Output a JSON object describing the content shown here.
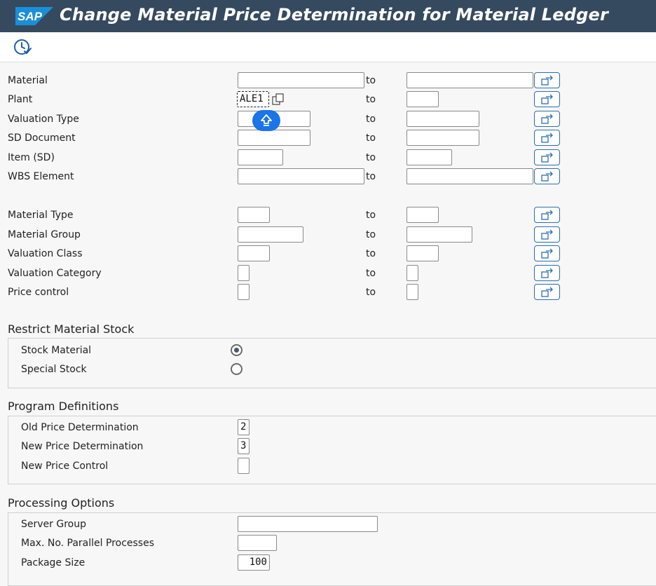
{
  "header": {
    "logo_text": "SAP",
    "title": "Change Material Price Determination for Material Ledger"
  },
  "toolbar": {
    "icon": "clock-execute-icon"
  },
  "colors": {
    "titlebar": "#354a5f",
    "multi_button_border": "#2a6fb0",
    "drag_handle": "#1b74e8"
  },
  "selection": {
    "to_label": "to",
    "rows": [
      {
        "label": "Material",
        "from": "",
        "to": ""
      },
      {
        "label": "Plant",
        "from": "ALE1",
        "to": ""
      },
      {
        "label": "Valuation Type",
        "from": "",
        "to": ""
      },
      {
        "label": "SD Document",
        "from": "",
        "to": ""
      },
      {
        "label": "Item (SD)",
        "from": "",
        "to": ""
      },
      {
        "label": "WBS Element",
        "from": "",
        "to": ""
      },
      {
        "label": "Material Type",
        "from": "",
        "to": ""
      },
      {
        "label": "Material Group",
        "from": "",
        "to": ""
      },
      {
        "label": "Valuation Class",
        "from": "",
        "to": ""
      },
      {
        "label": "Valuation Category",
        "from": "",
        "to": ""
      },
      {
        "label": "Price control",
        "from": "",
        "to": ""
      }
    ]
  },
  "restrict": {
    "title": "Restrict Material Stock",
    "options": [
      {
        "label": "Stock Material",
        "selected": true
      },
      {
        "label": "Special Stock",
        "selected": false
      }
    ]
  },
  "program": {
    "title": "Program Definitions",
    "fields": [
      {
        "label": "Old Price Determination",
        "value": "2"
      },
      {
        "label": "New Price Determination",
        "value": "3"
      },
      {
        "label": "New Price Control",
        "value": ""
      }
    ]
  },
  "processing": {
    "title": "Processing Options",
    "fields": [
      {
        "label": "Server Group",
        "value": ""
      },
      {
        "label": "Max. No. Parallel Processes",
        "value": ""
      },
      {
        "label": "Package Size",
        "value": "100"
      }
    ]
  }
}
